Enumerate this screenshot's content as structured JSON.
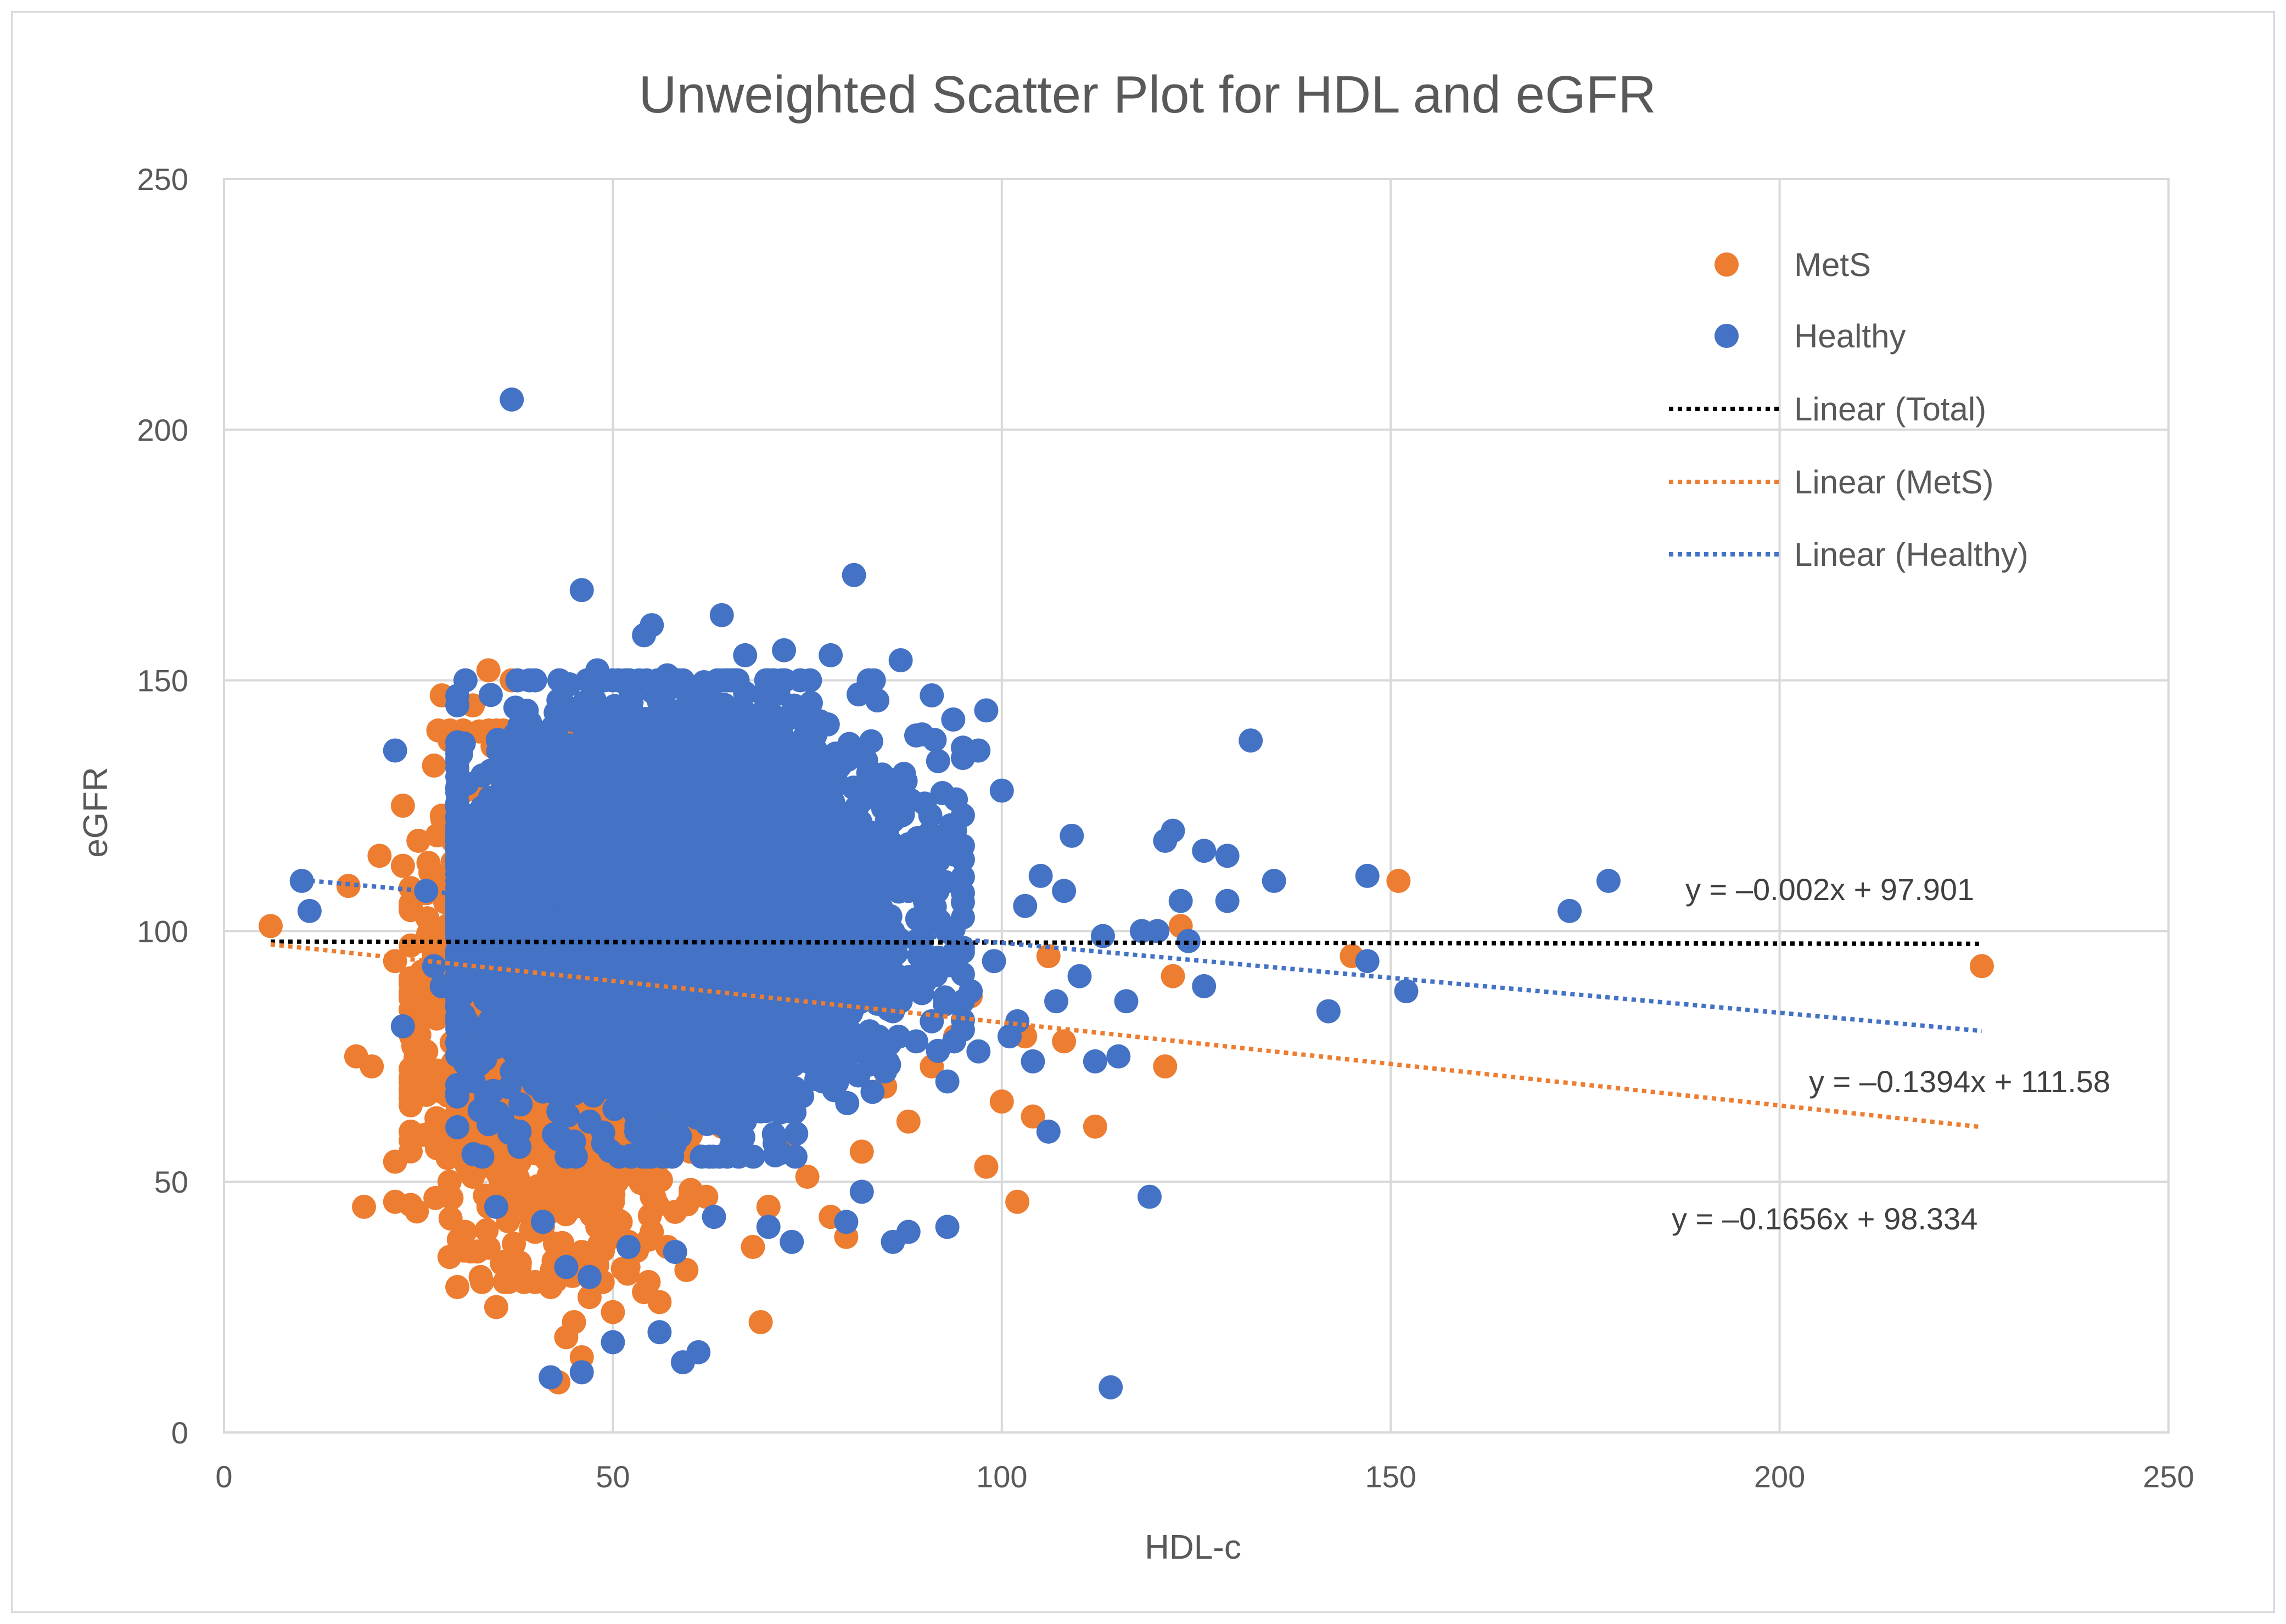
{
  "chart_data": {
    "type": "scatter",
    "title": "Unweighted Scatter Plot for HDL and eGFR",
    "xlabel": "HDL-c",
    "ylabel": "eGFR",
    "xlim": [
      0,
      250
    ],
    "ylim": [
      0,
      250
    ],
    "xticks": [
      "0",
      "50",
      "100",
      "150",
      "200",
      "250"
    ],
    "yticks": [
      "0",
      "50",
      "100",
      "150",
      "200",
      "250"
    ],
    "grid": true,
    "legend_position": "top-right",
    "colors": {
      "mets": "#ED7D31",
      "healthy": "#4472C4",
      "total": "#000000",
      "grid": "#d9d9d9",
      "axis": "#bfbfbf"
    },
    "legend": {
      "mets": "MetS",
      "healthy": "Healthy",
      "linear_total": "Linear (Total)",
      "linear_mets": "Linear (MetS)",
      "linear_healthy": "Linear (Healthy)"
    },
    "trendlines": [
      {
        "name": "Linear (Total)",
        "series": "total",
        "slope": -0.002,
        "intercept": 97.901,
        "x_range": [
          6,
          226
        ],
        "equation": "y = –0.002x + 97.901"
      },
      {
        "name": "Linear (Healthy)",
        "series": "healthy",
        "slope": -0.1394,
        "intercept": 111.58,
        "x_range": [
          10,
          226
        ],
        "equation": "y = –0.1394x + 111.58"
      },
      {
        "name": "Linear (MetS)",
        "series": "mets",
        "slope": -0.1656,
        "intercept": 98.334,
        "x_range": [
          6,
          226
        ],
        "equation": "y = –0.1656x + 98.334"
      }
    ],
    "series": [
      {
        "name": "MetS",
        "points": [
          [
            6,
            101
          ],
          [
            16,
            109
          ],
          [
            17,
            75
          ],
          [
            18,
            45
          ],
          [
            19,
            73
          ],
          [
            20,
            115
          ],
          [
            22,
            94
          ],
          [
            22,
            54
          ],
          [
            22,
            46
          ],
          [
            23,
            125
          ],
          [
            24,
            60
          ],
          [
            25,
            82
          ],
          [
            26,
            69
          ],
          [
            27,
            99
          ],
          [
            28,
            147
          ],
          [
            28,
            111
          ],
          [
            29,
            35
          ],
          [
            29,
            50
          ],
          [
            30,
            29
          ],
          [
            31,
            40
          ],
          [
            32,
            145
          ],
          [
            33,
            31
          ],
          [
            34,
            152
          ],
          [
            35,
            25
          ],
          [
            36,
            72
          ],
          [
            37,
            150
          ],
          [
            38,
            33
          ],
          [
            40,
            30
          ],
          [
            41,
            41
          ],
          [
            42,
            29
          ],
          [
            43,
            10
          ],
          [
            44,
            19
          ],
          [
            45,
            22
          ],
          [
            46,
            15
          ],
          [
            47,
            27
          ],
          [
            48,
            30
          ],
          [
            49,
            38
          ],
          [
            50,
            24
          ],
          [
            52,
            33
          ],
          [
            54,
            28
          ],
          [
            55,
            47
          ],
          [
            56,
            26
          ],
          [
            57,
            37
          ],
          [
            58,
            44
          ],
          [
            60,
            56
          ],
          [
            62,
            47
          ],
          [
            64,
            61
          ],
          [
            66,
            75
          ],
          [
            67,
            140
          ],
          [
            68,
            37
          ],
          [
            69,
            22
          ],
          [
            70,
            45
          ],
          [
            72,
            58
          ],
          [
            75,
            51
          ],
          [
            78,
            43
          ],
          [
            80,
            39
          ],
          [
            82,
            56
          ],
          [
            85,
            69
          ],
          [
            88,
            62
          ],
          [
            91,
            73
          ],
          [
            94,
            79
          ],
          [
            96,
            87
          ],
          [
            98,
            53
          ],
          [
            100,
            66
          ],
          [
            102,
            46
          ],
          [
            103,
            79
          ],
          [
            104,
            63
          ],
          [
            106,
            95
          ],
          [
            108,
            78
          ],
          [
            112,
            61
          ],
          [
            121,
            73
          ],
          [
            122,
            91
          ],
          [
            123,
            101
          ],
          [
            145,
            95
          ],
          [
            151,
            110
          ],
          [
            226,
            93
          ],
          [
            30,
            58
          ],
          [
            32,
            51
          ],
          [
            34,
            45
          ],
          [
            36,
            49
          ],
          [
            38,
            54
          ],
          [
            40,
            40
          ],
          [
            42,
            44
          ],
          [
            44,
            33
          ],
          [
            46,
            36
          ],
          [
            48,
            41
          ],
          [
            50,
            46
          ],
          [
            52,
            38
          ],
          [
            33,
            66
          ],
          [
            35,
            60
          ],
          [
            37,
            55
          ],
          [
            39,
            63
          ],
          [
            41,
            48
          ],
          [
            43,
            52
          ],
          [
            45,
            56
          ],
          [
            47,
            50
          ],
          [
            49,
            55
          ],
          [
            51,
            42
          ],
          [
            53,
            51
          ],
          [
            55,
            40
          ],
          [
            26,
            88
          ],
          [
            27,
            95
          ],
          [
            24,
            105
          ],
          [
            23,
            113
          ],
          [
            25,
            118
          ],
          [
            28,
            123
          ],
          [
            27,
            133
          ],
          [
            29,
            138
          ],
          [
            31,
            128
          ],
          [
            26,
            76
          ],
          [
            28,
            70
          ],
          [
            30,
            64
          ]
        ]
      },
      {
        "name": "Healthy",
        "points": [
          [
            10,
            110
          ],
          [
            11,
            104
          ],
          [
            22,
            136
          ],
          [
            23,
            81
          ],
          [
            26,
            108
          ],
          [
            27,
            93
          ],
          [
            28,
            89
          ],
          [
            30,
            67
          ],
          [
            33,
            123
          ],
          [
            35,
            45
          ],
          [
            37,
            206
          ],
          [
            38,
            60
          ],
          [
            41,
            42
          ],
          [
            42,
            11
          ],
          [
            44,
            33
          ],
          [
            46,
            168
          ],
          [
            46,
            12
          ],
          [
            47,
            31
          ],
          [
            50,
            18
          ],
          [
            52,
            37
          ],
          [
            54,
            159
          ],
          [
            55,
            161
          ],
          [
            56,
            20
          ],
          [
            58,
            36
          ],
          [
            59,
            14
          ],
          [
            61,
            16
          ],
          [
            63,
            43
          ],
          [
            64,
            163
          ],
          [
            67,
            155
          ],
          [
            70,
            41
          ],
          [
            72,
            156
          ],
          [
            73,
            38
          ],
          [
            76,
            139
          ],
          [
            78,
            155
          ],
          [
            80,
            42
          ],
          [
            81,
            171
          ],
          [
            82,
            48
          ],
          [
            84,
            146
          ],
          [
            86,
            38
          ],
          [
            87,
            154
          ],
          [
            88,
            40
          ],
          [
            89,
            139
          ],
          [
            91,
            147
          ],
          [
            93,
            41
          ],
          [
            95,
            117
          ],
          [
            97,
            136
          ],
          [
            98,
            144
          ],
          [
            99,
            94
          ],
          [
            100,
            128
          ],
          [
            101,
            79
          ],
          [
            102,
            82
          ],
          [
            103,
            105
          ],
          [
            104,
            74
          ],
          [
            105,
            111
          ],
          [
            106,
            60
          ],
          [
            107,
            86
          ],
          [
            108,
            108
          ],
          [
            109,
            119
          ],
          [
            110,
            91
          ],
          [
            112,
            74
          ],
          [
            113,
            99
          ],
          [
            114,
            9
          ],
          [
            115,
            75
          ],
          [
            116,
            86
          ],
          [
            118,
            100
          ],
          [
            119,
            47
          ],
          [
            120,
            100
          ],
          [
            121,
            118
          ],
          [
            122,
            120
          ],
          [
            123,
            106
          ],
          [
            124,
            98
          ],
          [
            126,
            89
          ],
          [
            126,
            116
          ],
          [
            129,
            115
          ],
          [
            129,
            106
          ],
          [
            132,
            138
          ],
          [
            135,
            110
          ],
          [
            142,
            84
          ],
          [
            147,
            111
          ],
          [
            147,
            94
          ],
          [
            152,
            88
          ],
          [
            173,
            104
          ],
          [
            178,
            110
          ],
          [
            40,
            120
          ],
          [
            42,
            95
          ],
          [
            44,
            100
          ],
          [
            46,
            110
          ],
          [
            48,
            90
          ],
          [
            50,
            105
          ],
          [
            52,
            115
          ],
          [
            54,
            85
          ],
          [
            56,
            98
          ],
          [
            58,
            125
          ],
          [
            60,
            102
          ],
          [
            62,
            92
          ],
          [
            64,
            112
          ],
          [
            66,
            88
          ],
          [
            68,
            120
          ],
          [
            70,
            96
          ],
          [
            72,
            106
          ],
          [
            74,
            82
          ],
          [
            76,
            114
          ],
          [
            78,
            94
          ],
          [
            80,
            104
          ],
          [
            82,
            90
          ],
          [
            84,
            100
          ],
          [
            86,
            84
          ],
          [
            88,
            108
          ],
          [
            90,
            92
          ],
          [
            36,
            132
          ],
          [
            38,
            141
          ],
          [
            40,
            150
          ],
          [
            43,
            146
          ],
          [
            48,
            152
          ],
          [
            52,
            149
          ],
          [
            57,
            151
          ],
          [
            62,
            148
          ],
          [
            66,
            141
          ],
          [
            70,
            144
          ],
          [
            74,
            135
          ],
          [
            78,
            130
          ],
          [
            82,
            126
          ],
          [
            86,
            122
          ],
          [
            90,
            112
          ],
          [
            92,
            102
          ],
          [
            94,
            96
          ],
          [
            96,
            88
          ],
          [
            35,
            80
          ],
          [
            37,
            72
          ],
          [
            39,
            76
          ],
          [
            41,
            68
          ],
          [
            43,
            64
          ],
          [
            45,
            58
          ],
          [
            47,
            62
          ],
          [
            49,
            70
          ],
          [
            51,
            66
          ],
          [
            53,
            60
          ],
          [
            55,
            74
          ],
          [
            57,
            56
          ],
          [
            59,
            78
          ],
          [
            61,
            64
          ],
          [
            63,
            70
          ],
          [
            65,
            60
          ],
          [
            67,
            76
          ],
          [
            69,
            68
          ],
          [
            71,
            72
          ],
          [
            73,
            64
          ],
          [
            75,
            78
          ],
          [
            77,
            70
          ],
          [
            79,
            84
          ],
          [
            81,
            76
          ],
          [
            83,
            80
          ],
          [
            85,
            72
          ],
          [
            87,
            86
          ],
          [
            89,
            78
          ],
          [
            91,
            82
          ],
          [
            93,
            70
          ],
          [
            95,
            86
          ],
          [
            97,
            76
          ]
        ]
      }
    ],
    "dense_regions": [
      {
        "series": "mets",
        "x": [
          24,
          60
        ],
        "y": [
          30,
          140
        ],
        "count": 1400,
        "seed": 11
      },
      {
        "series": "healthy",
        "x": [
          30,
          95
        ],
        "y": [
          55,
          150
        ],
        "count": 5200,
        "seed": 23
      }
    ]
  }
}
